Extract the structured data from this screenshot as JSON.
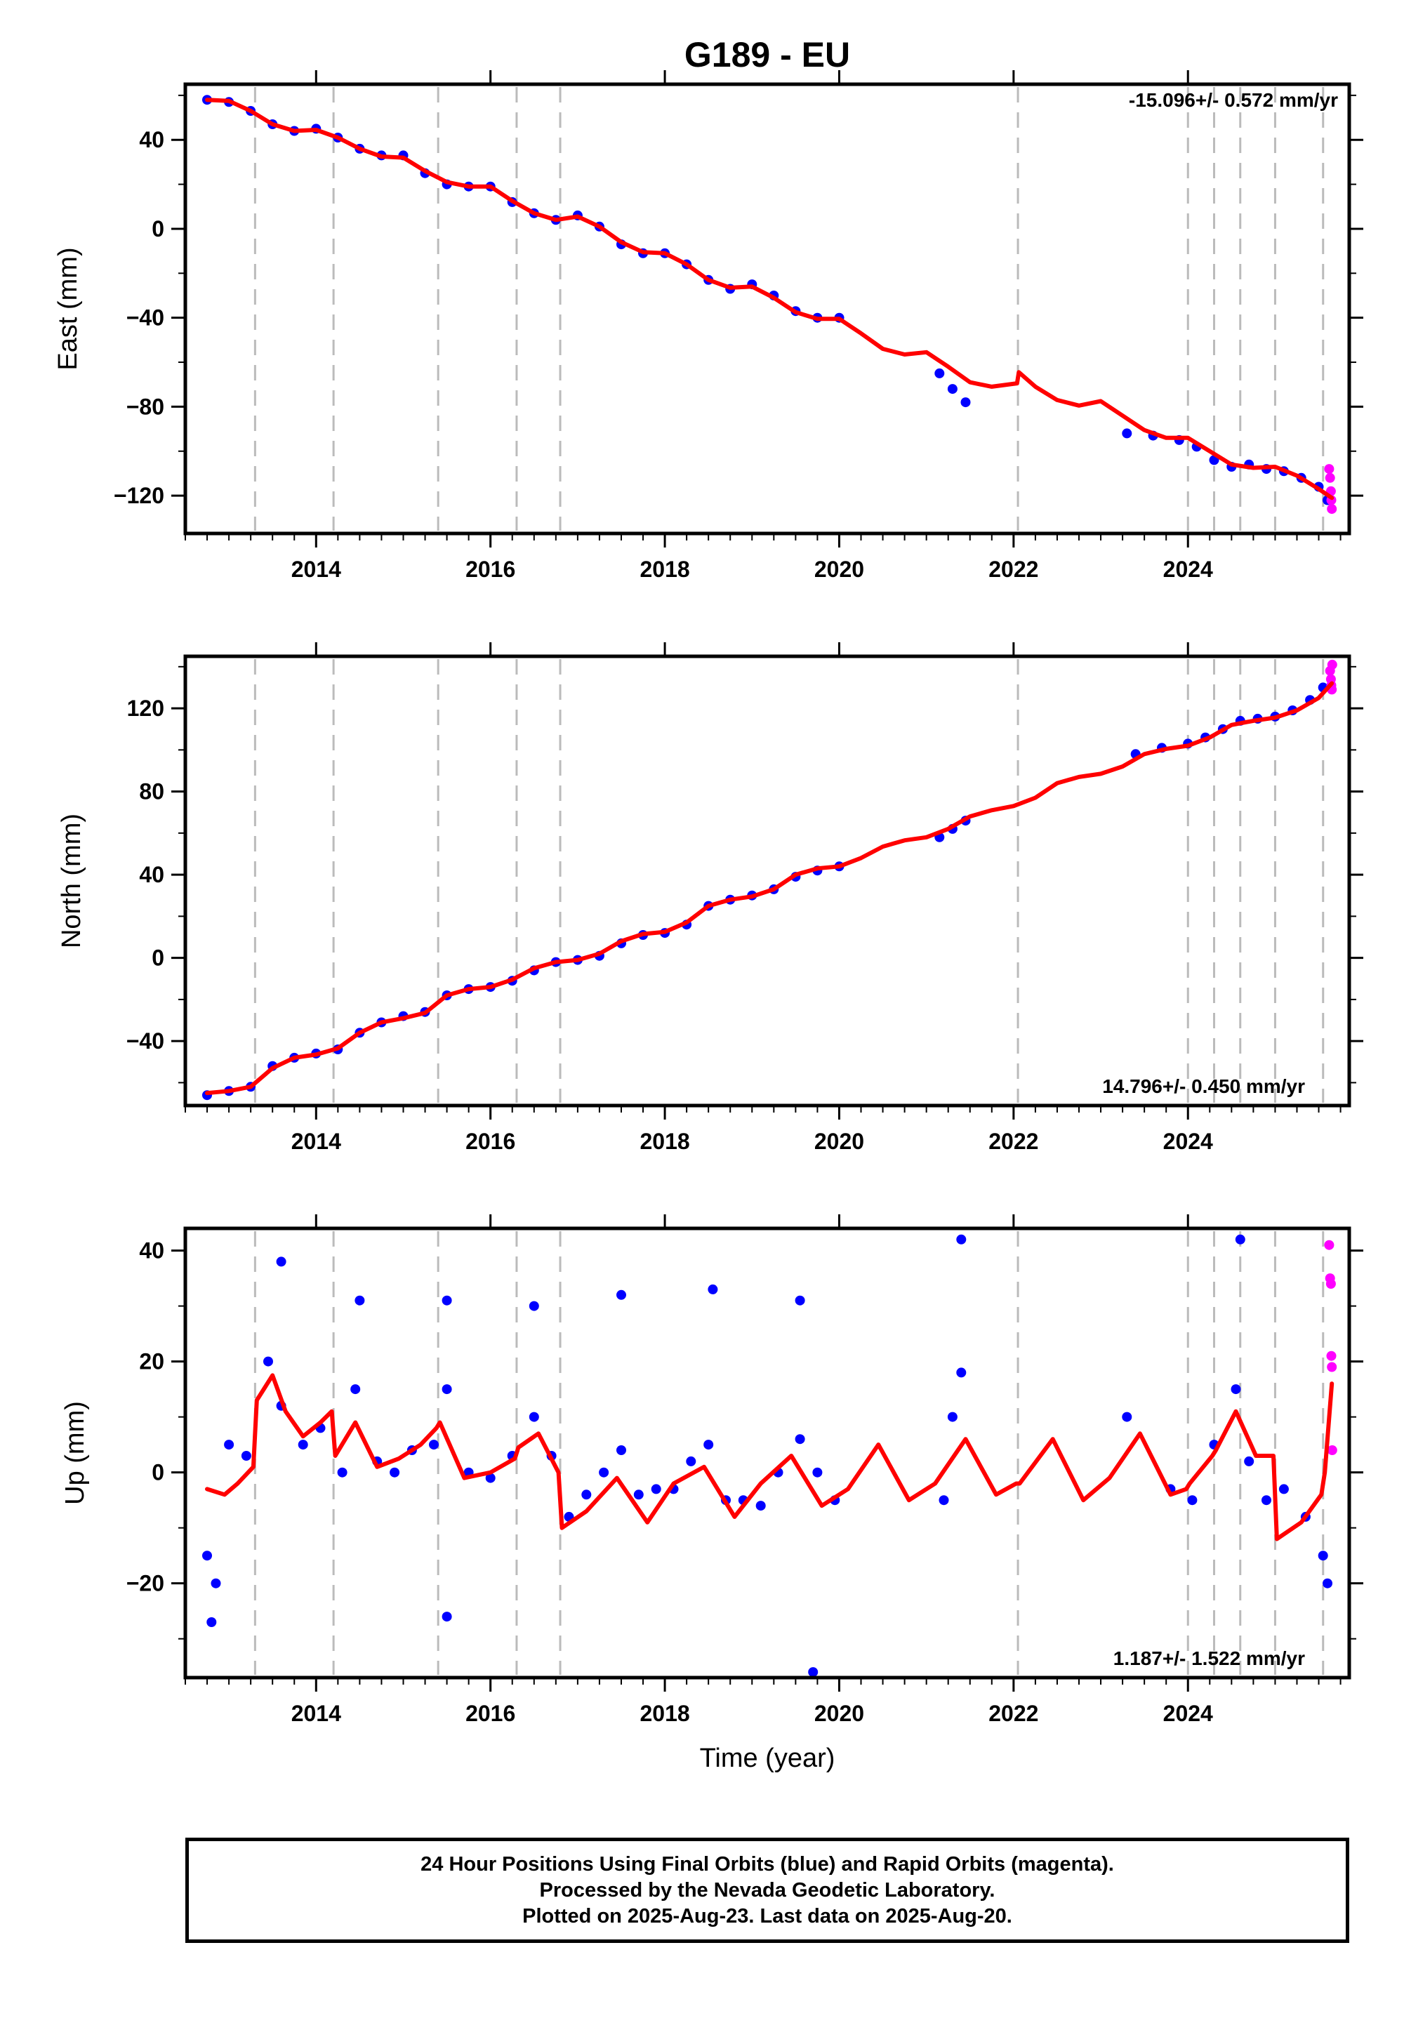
{
  "title": "G189 - EU",
  "xlabel": "Time (year)",
  "footer": {
    "line1": "24 Hour Positions Using Final Orbits (blue) and Rapid Orbits (magenta).",
    "line2": "Processed by the Nevada Geodetic Laboratory.",
    "line3": "Plotted on 2025-Aug-23. Last data on 2025-Aug-20."
  },
  "colors": {
    "final_orbits": "#0000ff",
    "rapid_orbits": "#ff00ff",
    "model": "#ff0000",
    "event_lines": "#bbbbbb",
    "frame": "#000000"
  },
  "chart_data": [
    {
      "type": "scatter",
      "panel": "east",
      "title": "G189 - EU",
      "xlabel": "",
      "ylabel": "East (mm)",
      "xlim": [
        2012.5,
        2025.85
      ],
      "ylim": [
        -137,
        65
      ],
      "xticks": [
        2014,
        2016,
        2018,
        2020,
        2022,
        2024
      ],
      "yticks": [
        -120,
        -80,
        -40,
        0,
        40
      ],
      "rate_text": "-15.096+/- 0.572 mm/yr",
      "rate_position": "top-right",
      "event_lines": [
        2013.3,
        2014.2,
        2015.4,
        2016.3,
        2016.8,
        2022.05,
        2024.0,
        2024.3,
        2024.6,
        2025.0,
        2025.55
      ],
      "series": [
        {
          "kind": "final",
          "x": [
            2012.75,
            2013.0,
            2013.25,
            2013.5,
            2013.75,
            2014.0,
            2014.25,
            2014.5,
            2014.75,
            2015.0,
            2015.25,
            2015.5,
            2015.75,
            2016.0,
            2016.25,
            2016.5,
            2016.75,
            2017.0,
            2017.25,
            2017.5,
            2017.75,
            2018.0,
            2018.25,
            2018.5,
            2018.75,
            2019.0,
            2019.25,
            2019.5,
            2019.75,
            2020.0,
            2021.15,
            2021.3,
            2021.45,
            2023.3,
            2023.6,
            2023.9,
            2024.1,
            2024.3,
            2024.5,
            2024.7,
            2024.9,
            2025.1,
            2025.3,
            2025.5,
            2025.6
          ],
          "y": [
            58,
            57,
            53,
            47,
            44,
            45,
            41,
            36,
            33,
            33,
            25,
            20,
            19,
            19,
            12,
            7,
            4,
            6,
            1,
            -7,
            -11,
            -11,
            -16,
            -23,
            -27,
            -25,
            -30,
            -37,
            -40,
            -40,
            -65,
            -72,
            -78,
            -92,
            -93,
            -95,
            -98,
            -104,
            -107,
            -106,
            -108,
            -109,
            -112,
            -116,
            -122
          ]
        },
        {
          "kind": "rapid",
          "x": [
            2025.62,
            2025.63,
            2025.64,
            2025.645,
            2025.65
          ],
          "y": [
            -108,
            -112,
            -118,
            -122,
            -126
          ]
        },
        {
          "kind": "model",
          "x": [
            2012.75,
            2013.0,
            2013.25,
            2013.5,
            2013.75,
            2014.0,
            2014.25,
            2014.5,
            2014.75,
            2015.0,
            2015.25,
            2015.5,
            2015.75,
            2016.0,
            2016.25,
            2016.5,
            2016.75,
            2017.0,
            2017.25,
            2017.5,
            2017.75,
            2018.0,
            2018.25,
            2018.5,
            2018.75,
            2019.0,
            2019.25,
            2019.5,
            2019.75,
            2020.0,
            2020.25,
            2020.5,
            2020.75,
            2021.0,
            2021.25,
            2021.5,
            2021.75,
            2022.04,
            2022.06,
            2022.25,
            2022.5,
            2022.75,
            2023.0,
            2023.25,
            2023.5,
            2023.75,
            2024.0,
            2024.25,
            2024.5,
            2024.75,
            2025.0,
            2025.25,
            2025.5,
            2025.65
          ],
          "y": [
            58,
            57.5,
            53,
            47,
            44,
            44.5,
            41,
            36,
            32.5,
            32,
            26,
            21,
            19,
            19,
            12.5,
            7,
            4,
            5.5,
            1,
            -6,
            -10.5,
            -11,
            -16,
            -23,
            -26.5,
            -26,
            -31,
            -37.5,
            -40.5,
            -40.5,
            -47,
            -54,
            -56.5,
            -55.5,
            -62,
            -69,
            -71,
            -69.5,
            -64.5,
            -71,
            -77,
            -79.5,
            -77.5,
            -84,
            -90.5,
            -94,
            -94,
            -100,
            -106,
            -107.5,
            -107,
            -111,
            -117,
            -121
          ]
        }
      ]
    },
    {
      "type": "scatter",
      "panel": "north",
      "xlabel": "",
      "ylabel": "North (mm)",
      "xlim": [
        2012.5,
        2025.85
      ],
      "ylim": [
        -71,
        145
      ],
      "xticks": [
        2014,
        2016,
        2018,
        2020,
        2022,
        2024
      ],
      "yticks": [
        -40,
        0,
        40,
        80,
        120
      ],
      "rate_text": "14.796+/- 0.450 mm/yr",
      "rate_position": "bottom-right",
      "event_lines": [
        2013.3,
        2014.2,
        2015.4,
        2016.3,
        2016.8,
        2022.05,
        2024.0,
        2024.3,
        2024.6,
        2025.0,
        2025.55
      ],
      "series": [
        {
          "kind": "final",
          "x": [
            2012.75,
            2013.0,
            2013.25,
            2013.5,
            2013.75,
            2014.0,
            2014.25,
            2014.5,
            2014.75,
            2015.0,
            2015.25,
            2015.5,
            2015.75,
            2016.0,
            2016.25,
            2016.5,
            2016.75,
            2017.0,
            2017.25,
            2017.5,
            2017.75,
            2018.0,
            2018.25,
            2018.5,
            2018.75,
            2019.0,
            2019.25,
            2019.5,
            2019.75,
            2020.0,
            2021.15,
            2021.3,
            2021.45,
            2023.4,
            2023.7,
            2024.0,
            2024.2,
            2024.4,
            2024.6,
            2024.8,
            2025.0,
            2025.2,
            2025.4,
            2025.55
          ],
          "y": [
            -66,
            -64,
            -62,
            -52,
            -48,
            -46,
            -44,
            -36,
            -31,
            -28,
            -26,
            -18,
            -15,
            -14,
            -11,
            -6,
            -2,
            -1,
            1,
            7,
            11,
            12,
            16,
            25,
            28,
            30,
            33,
            39,
            42,
            44,
            58,
            62,
            66,
            98,
            101,
            103,
            106,
            110,
            114,
            115,
            116,
            119,
            124,
            130
          ]
        },
        {
          "kind": "rapid",
          "x": [
            2025.63,
            2025.64,
            2025.645,
            2025.65,
            2025.655
          ],
          "y": [
            138,
            134,
            131,
            129,
            141
          ]
        },
        {
          "kind": "model",
          "x": [
            2012.75,
            2013.0,
            2013.25,
            2013.5,
            2013.75,
            2014.0,
            2014.25,
            2014.5,
            2014.75,
            2015.0,
            2015.25,
            2015.5,
            2015.75,
            2016.0,
            2016.25,
            2016.5,
            2016.75,
            2017.0,
            2017.25,
            2017.5,
            2017.75,
            2018.0,
            2018.25,
            2018.5,
            2018.75,
            2019.0,
            2019.25,
            2019.5,
            2019.75,
            2020.0,
            2020.25,
            2020.5,
            2020.75,
            2021.0,
            2021.25,
            2021.5,
            2021.75,
            2022.0,
            2022.25,
            2022.5,
            2022.75,
            2023.0,
            2023.25,
            2023.5,
            2023.75,
            2024.0,
            2024.25,
            2024.5,
            2024.75,
            2025.0,
            2025.25,
            2025.5,
            2025.65
          ],
          "y": [
            -65,
            -64,
            -62,
            -53,
            -48,
            -46.5,
            -43.5,
            -36,
            -31,
            -29,
            -26.5,
            -18,
            -15,
            -14,
            -10.5,
            -5,
            -2,
            -1,
            2,
            8,
            11.5,
            12.5,
            17,
            25,
            28,
            29.5,
            33,
            40,
            43,
            44,
            48,
            53.5,
            56.5,
            58,
            62,
            68,
            71,
            73,
            77,
            84,
            87,
            88.5,
            92,
            98,
            100.5,
            102,
            106,
            112,
            114,
            115.5,
            119,
            125,
            132
          ]
        }
      ]
    },
    {
      "type": "scatter",
      "panel": "up",
      "xlabel": "Time (year)",
      "ylabel": "Up (mm)",
      "xlim": [
        2012.5,
        2025.85
      ],
      "ylim": [
        -37,
        44
      ],
      "xticks": [
        2014,
        2016,
        2018,
        2020,
        2022,
        2024
      ],
      "yticks": [
        -20,
        0,
        20,
        40
      ],
      "rate_text": "1.187+/- 1.522 mm/yr",
      "rate_position": "bottom-right",
      "event_lines": [
        2013.3,
        2014.2,
        2015.4,
        2016.3,
        2016.8,
        2022.05,
        2024.0,
        2024.3,
        2024.6,
        2025.0,
        2025.55
      ],
      "series": [
        {
          "kind": "final",
          "x": [
            2012.75,
            2012.85,
            2013.0,
            2013.2,
            2013.45,
            2013.6,
            2013.85,
            2014.05,
            2014.3,
            2014.45,
            2014.7,
            2014.9,
            2015.1,
            2015.35,
            2015.5,
            2015.75,
            2016.0,
            2016.25,
            2016.5,
            2016.7,
            2016.9,
            2017.1,
            2017.3,
            2017.5,
            2017.7,
            2017.9,
            2018.1,
            2018.3,
            2018.5,
            2018.7,
            2018.9,
            2019.1,
            2019.3,
            2019.55,
            2019.75,
            2019.95,
            2021.2,
            2021.3,
            2021.4,
            2023.3,
            2023.8,
            2024.05,
            2024.3,
            2024.55,
            2024.7,
            2024.9,
            2025.1,
            2025.35,
            2025.55,
            2025.6,
            2012.8,
            2013.6,
            2014.5,
            2015.5,
            2016.5,
            2017.5,
            2018.55,
            2019.55,
            2021.4,
            2024.6,
            2015.5,
            2019.7
          ],
          "y": [
            -15,
            -20,
            5,
            3,
            20,
            12,
            5,
            8,
            0,
            15,
            2,
            0,
            4,
            5,
            15,
            0,
            -1,
            3,
            10,
            3,
            -8,
            -4,
            0,
            4,
            -4,
            -3,
            -3,
            2,
            5,
            -5,
            -5,
            -6,
            0,
            6,
            0,
            -5,
            -5,
            10,
            18,
            10,
            -3,
            -5,
            5,
            15,
            2,
            -5,
            -3,
            -8,
            -15,
            -20,
            -27,
            38,
            31,
            31,
            30,
            32,
            33,
            31,
            42,
            42,
            -26,
            -36
          ]
        },
        {
          "kind": "rapid",
          "x": [
            2025.62,
            2025.63,
            2025.64,
            2025.645,
            2025.65,
            2025.655
          ],
          "y": [
            41,
            35,
            34,
            21,
            19,
            4
          ]
        },
        {
          "kind": "model",
          "x": [
            2012.75,
            2012.95,
            2013.1,
            2013.28,
            2013.32,
            2013.5,
            2013.65,
            2013.85,
            2014.05,
            2014.18,
            2014.22,
            2014.45,
            2014.7,
            2014.95,
            2015.2,
            2015.38,
            2015.42,
            2015.7,
            2016.0,
            2016.28,
            2016.32,
            2016.55,
            2016.78,
            2016.82,
            2017.1,
            2017.45,
            2017.8,
            2018.1,
            2018.45,
            2018.8,
            2019.1,
            2019.45,
            2019.8,
            2020.1,
            2020.45,
            2020.8,
            2021.1,
            2021.45,
            2021.8,
            2022.03,
            2022.07,
            2022.45,
            2022.8,
            2023.1,
            2023.45,
            2023.8,
            2023.98,
            2024.02,
            2024.28,
            2024.32,
            2024.55,
            2024.78,
            2024.98,
            2025.02,
            2025.3,
            2025.53,
            2025.57,
            2025.65
          ],
          "y": [
            -3,
            -4,
            -2,
            1,
            13,
            17.5,
            11,
            6.5,
            9,
            11,
            3,
            9,
            1,
            2.5,
            5,
            8,
            9,
            -1,
            0,
            2.5,
            4.5,
            7,
            0,
            -10,
            -7,
            -1,
            -9,
            -2,
            1,
            -8,
            -2,
            3,
            -6,
            -3,
            5,
            -5,
            -2,
            6,
            -4,
            -2,
            -2,
            6,
            -5,
            -1,
            7,
            -4,
            -3,
            -2,
            3,
            4,
            11,
            3,
            3,
            -12,
            -9,
            -4,
            0,
            16
          ]
        }
      ]
    }
  ]
}
